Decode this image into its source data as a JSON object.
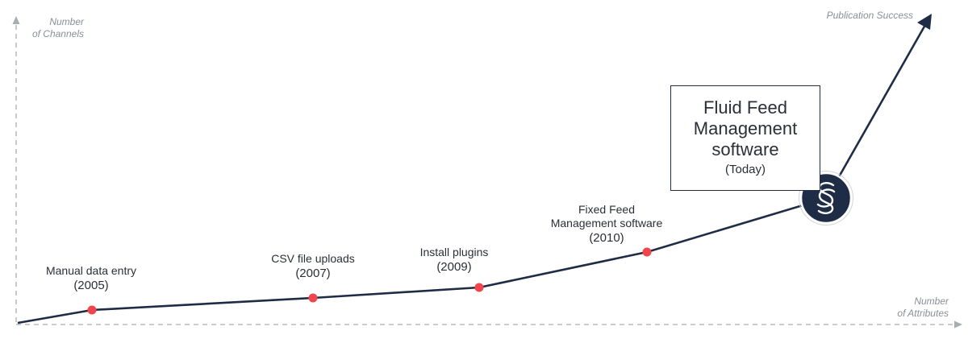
{
  "axes": {
    "y_label_line1": "Number",
    "y_label_line2": "of Channels",
    "x_label_line1": "Number",
    "x_label_line2": "of Attributes",
    "arrow_label": "Publication Success"
  },
  "milestones": [
    {
      "name": "Manual data entry",
      "year": "(2005)"
    },
    {
      "name": "CSV file uploads",
      "year": "(2007)"
    },
    {
      "name": "Install plugins",
      "year": "(2009)"
    },
    {
      "name_line1": "Fixed Feed",
      "name_line2": "Management software",
      "year": "(2010)"
    }
  ],
  "callout": {
    "title_line1": "Fluid Feed",
    "title_line2": "Management",
    "title_line3": "software",
    "subtitle": "(Today)"
  },
  "colors": {
    "line": "#1e2c45",
    "milestone_dot": "#f0454c",
    "axis": "#9aa0a6",
    "logo_circle": "#1e2c45"
  },
  "icons": {
    "logo": "fluid-feed-logo-icon"
  }
}
